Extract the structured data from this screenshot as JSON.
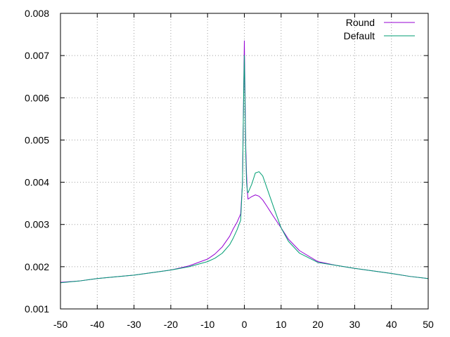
{
  "chart_data": {
    "type": "line",
    "title": "",
    "xlabel": "",
    "ylabel": "",
    "xlim": [
      -50,
      50
    ],
    "ylim": [
      0.001,
      0.008
    ],
    "grid": true,
    "legend_position": "top-right",
    "x_ticks": [
      "-50",
      "-40",
      "-30",
      "-20",
      "-10",
      "0",
      "10",
      "20",
      "30",
      "40",
      "50"
    ],
    "y_ticks": [
      "0.001",
      "0.002",
      "0.003",
      "0.004",
      "0.005",
      "0.006",
      "0.007",
      "0.008"
    ],
    "series": [
      {
        "name": "Round",
        "color": "#9400d3",
        "x": [
          -50,
          -45,
          -40,
          -35,
          -30,
          -25,
          -20,
          -15,
          -10,
          -8,
          -6,
          -4,
          -3,
          -2,
          -1,
          -0.5,
          -0.2,
          0,
          0.2,
          0.4,
          0.6,
          0.8,
          1,
          2,
          3,
          4,
          5,
          6,
          8,
          10,
          12,
          15,
          20,
          25,
          30,
          35,
          40,
          45,
          50
        ],
        "y": [
          0.00163,
          0.00166,
          0.00172,
          0.00176,
          0.0018,
          0.00186,
          0.00192,
          0.00202,
          0.00218,
          0.0023,
          0.00247,
          0.00272,
          0.0029,
          0.00305,
          0.00325,
          0.004,
          0.006,
          0.00735,
          0.006,
          0.0048,
          0.0042,
          0.0038,
          0.0036,
          0.00366,
          0.0037,
          0.00367,
          0.00358,
          0.00345,
          0.00318,
          0.00292,
          0.00265,
          0.00238,
          0.00212,
          0.00203,
          0.00196,
          0.0019,
          0.00184,
          0.00177,
          0.00172
        ]
      },
      {
        "name": "Default",
        "color": "#009e73",
        "x": [
          -50,
          -45,
          -40,
          -35,
          -30,
          -25,
          -20,
          -15,
          -10,
          -8,
          -6,
          -4,
          -3,
          -2,
          -1,
          -0.5,
          -0.2,
          0,
          0.2,
          0.4,
          0.6,
          0.8,
          1,
          2,
          3,
          4,
          5,
          6,
          8,
          10,
          12,
          15,
          20,
          25,
          30,
          35,
          40,
          45,
          50
        ],
        "y": [
          0.00162,
          0.00166,
          0.00172,
          0.00176,
          0.0018,
          0.00186,
          0.00192,
          0.002,
          0.00212,
          0.0022,
          0.00232,
          0.00252,
          0.00268,
          0.00287,
          0.0031,
          0.004,
          0.006,
          0.007,
          0.0058,
          0.0046,
          0.004,
          0.0038,
          0.00375,
          0.00395,
          0.00422,
          0.00425,
          0.00415,
          0.0039,
          0.0034,
          0.00292,
          0.0026,
          0.00232,
          0.0021,
          0.00203,
          0.00196,
          0.0019,
          0.00184,
          0.00177,
          0.00172
        ]
      }
    ]
  }
}
